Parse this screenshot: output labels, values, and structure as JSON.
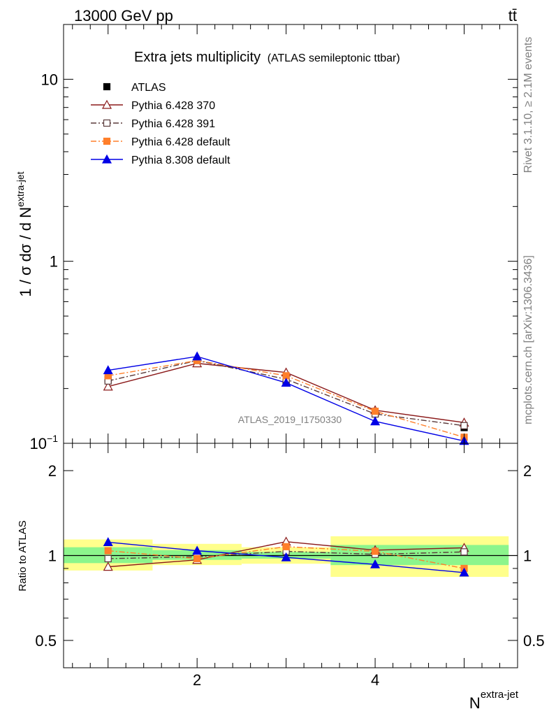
{
  "header": {
    "left": "13000 GeV pp",
    "right": "tt̄"
  },
  "side_labels": {
    "rivet": "Rivet 3.1.10, ≥ 2.1M events",
    "mcplots": "mcplots.cern.ch [arXiv:1306.3436]"
  },
  "analysis_id": "ATLAS_2019_I1750330",
  "chart_data": [
    {
      "type": "line",
      "panel": "main",
      "title": "Extra jets multiplicity",
      "subtitle": "(ATLAS semileptonic ttbar)",
      "ylabel": "1 / σ dσ / d N",
      "ylabel_sup": "extra-jet",
      "yscale": "log",
      "ylim": [
        0.1,
        20
      ],
      "xlim": [
        0.5,
        5.6
      ],
      "x": [
        1,
        2,
        3,
        4,
        5
      ],
      "y_ticks": [
        {
          "value": 0.1,
          "label": "10",
          "sup": "−1"
        },
        {
          "value": 1,
          "label": "1",
          "sup": ""
        },
        {
          "value": 10,
          "label": "10",
          "sup": ""
        }
      ],
      "legend_position": "top-left",
      "series": [
        {
          "name": "ATLAS",
          "values": [
            0.225,
            0.285,
            0.218,
            0.145,
            0.122
          ],
          "color": "#000000",
          "marker": "square-filled",
          "style": "none"
        },
        {
          "name": "Pythia 6.428 370",
          "values": [
            0.205,
            0.275,
            0.245,
            0.152,
            0.13
          ],
          "color": "#8b1a1a",
          "marker": "triangle-open",
          "style": "solid"
        },
        {
          "name": "Pythia 6.428 391",
          "values": [
            0.22,
            0.285,
            0.225,
            0.145,
            0.125
          ],
          "color": "#5a3a3a",
          "marker": "square-open",
          "style": "dashdot"
        },
        {
          "name": "Pythia 6.428 default",
          "values": [
            0.235,
            0.285,
            0.235,
            0.15,
            0.108
          ],
          "color": "#ff7f2a",
          "marker": "square-filled",
          "style": "dashdot"
        },
        {
          "name": "Pythia 8.308 default",
          "values": [
            0.252,
            0.3,
            0.215,
            0.132,
            0.103
          ],
          "color": "#0000e6",
          "marker": "triangle-filled",
          "style": "solid"
        }
      ]
    },
    {
      "type": "line",
      "panel": "ratio",
      "ylabel": "Ratio to ATLAS",
      "xlabel": "N",
      "xlabel_sup": "extra-jet",
      "yscale": "log",
      "ylim": [
        0.4,
        2.5
      ],
      "xlim": [
        0.5,
        5.6
      ],
      "x": [
        1,
        2,
        3,
        4,
        5
      ],
      "x_ticks": [
        2,
        4
      ],
      "y_ticks": [
        {
          "value": 0.5,
          "label": "0.5"
        },
        {
          "value": 1,
          "label": "1"
        },
        {
          "value": 2,
          "label": "2"
        }
      ],
      "bands": {
        "bins": [
          [
            0.5,
            1.5
          ],
          [
            1.5,
            2.5
          ],
          [
            2.5,
            3.5
          ],
          [
            3.5,
            5.5
          ]
        ],
        "stat": [
          [
            0.94,
            1.07
          ],
          [
            0.965,
            1.045
          ],
          [
            0.975,
            1.03
          ],
          [
            0.925,
            1.09
          ]
        ],
        "total": [
          [
            0.885,
            1.14
          ],
          [
            0.925,
            1.1
          ],
          [
            0.935,
            1.07
          ],
          [
            0.84,
            1.17
          ]
        ],
        "stat_color": "#8cf58c",
        "total_color": "#ffff8c"
      },
      "series": [
        {
          "name": "Pythia 6.428 370",
          "values": [
            0.912,
            0.965,
            1.12,
            1.045,
            1.065
          ],
          "color": "#8b1a1a",
          "marker": "triangle-open",
          "style": "solid"
        },
        {
          "name": "Pythia 6.428 391",
          "values": [
            0.975,
            0.99,
            1.035,
            1.01,
            1.03
          ],
          "color": "#5a3a3a",
          "marker": "square-open",
          "style": "dashdot"
        },
        {
          "name": "Pythia 6.428 default",
          "values": [
            1.04,
            0.975,
            1.075,
            1.035,
            0.9
          ],
          "color": "#ff7f2a",
          "marker": "square-filled",
          "style": "dashdot"
        },
        {
          "name": "Pythia 8.308 default",
          "values": [
            1.115,
            1.04,
            0.985,
            0.93,
            0.87
          ],
          "color": "#0000e6",
          "marker": "triangle-filled",
          "style": "solid"
        }
      ]
    }
  ]
}
